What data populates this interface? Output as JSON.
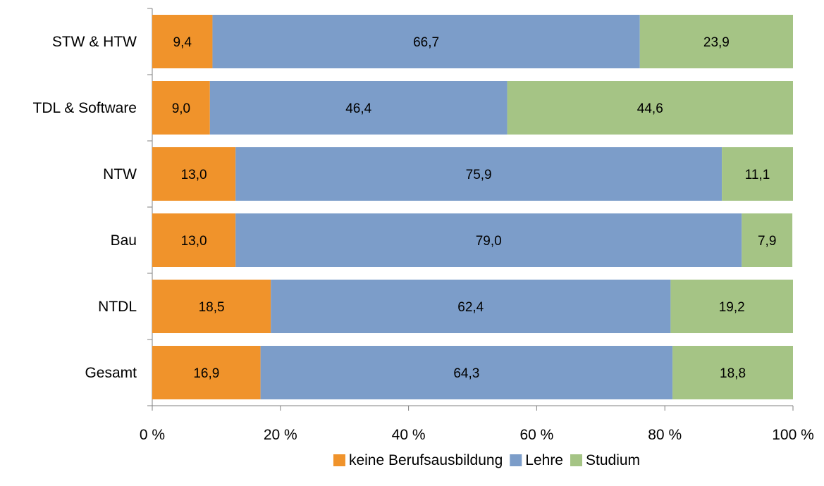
{
  "chart_data": {
    "type": "bar",
    "orientation": "horizontal",
    "stacked": true,
    "categories": [
      "STW & HTW",
      "TDL & Software",
      "NTW",
      "Bau",
      "NTDL",
      "Gesamt"
    ],
    "series": [
      {
        "name": "keine Berufsausbildung",
        "color": "#F0932B",
        "values": [
          9.4,
          9.0,
          13.0,
          13.0,
          18.5,
          16.9
        ],
        "labels": [
          "9,4",
          "9,0",
          "13,0",
          "13,0",
          "18,5",
          "16,9"
        ]
      },
      {
        "name": "Lehre",
        "color": "#7C9DC9",
        "values": [
          66.7,
          46.4,
          75.9,
          79.0,
          62.4,
          64.3
        ],
        "labels": [
          "66,7",
          "46,4",
          "75,9",
          "79,0",
          "62,4",
          "64,3"
        ]
      },
      {
        "name": "Studium",
        "color": "#A5C485",
        "values": [
          23.9,
          44.6,
          11.1,
          7.9,
          19.2,
          18.8
        ],
        "labels": [
          "23,9",
          "44,6",
          "11,1",
          "7,9",
          "19,2",
          "18,8"
        ]
      }
    ],
    "xlim": [
      0,
      100
    ],
    "x_ticks": [
      0,
      20,
      40,
      60,
      80,
      100
    ],
    "x_tick_labels": [
      "0 %",
      "20 %",
      "40 %",
      "60 %",
      "80 %",
      "100 %"
    ],
    "grid": false,
    "legend_position": "bottom"
  }
}
